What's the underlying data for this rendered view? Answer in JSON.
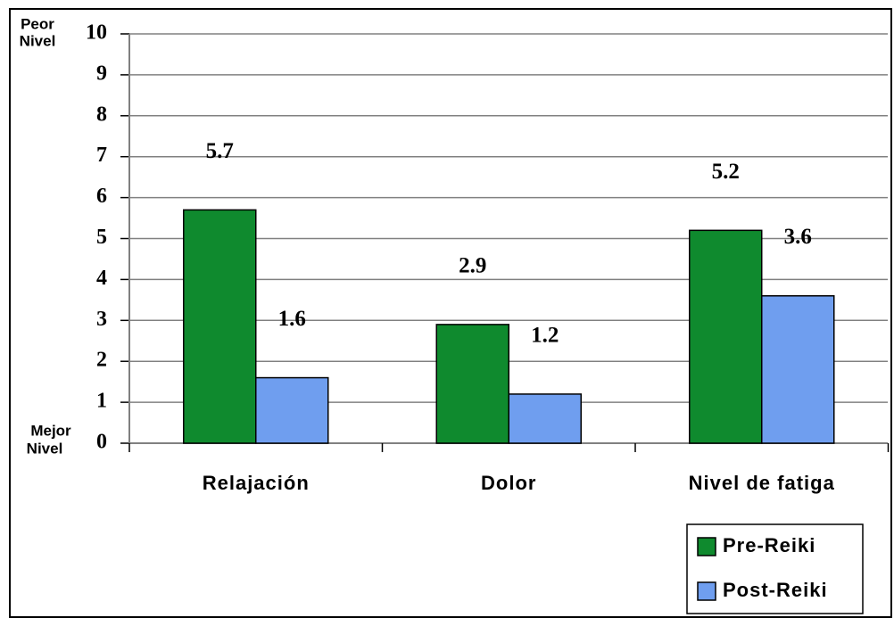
{
  "chart_data": {
    "type": "bar",
    "annotations": {
      "top": [
        "Peor",
        "Nivel"
      ],
      "bottom": [
        "Mejor",
        "Nivel"
      ]
    },
    "categories": [
      "Relajación",
      "Dolor",
      "Nivel de fatiga"
    ],
    "series": [
      {
        "name": "Pre-Reiki",
        "color": "#0f8a2e",
        "values": [
          5.7,
          2.9,
          5.2
        ]
      },
      {
        "name": "Post-Reiki",
        "color": "#6f9eef",
        "values": [
          1.6,
          1.2,
          3.6
        ]
      }
    ],
    "ylim": [
      0,
      10
    ],
    "yticks": [
      0,
      1,
      2,
      3,
      4,
      5,
      6,
      7,
      8,
      9,
      10
    ],
    "grid": true,
    "legend": "bottom-right"
  }
}
